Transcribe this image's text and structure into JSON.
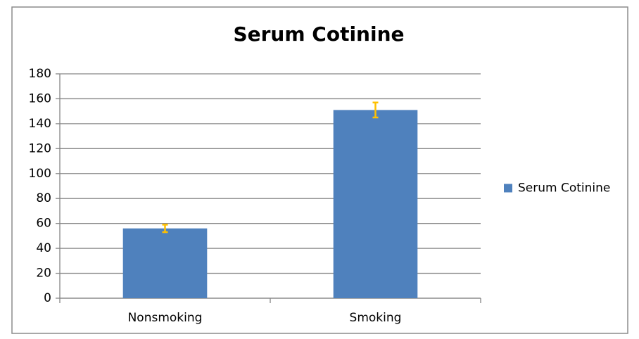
{
  "chart_data": {
    "type": "bar",
    "title": "Serum Cotinine",
    "categories": [
      "Nonsmoking",
      "Smoking"
    ],
    "series": [
      {
        "name": "Serum Cotinine",
        "color": "#4f81bd",
        "values": [
          56,
          151
        ],
        "errors": [
          3,
          6
        ],
        "error_color": "#ffc000"
      }
    ],
    "ylim": [
      0,
      180
    ],
    "yticks": [
      0,
      20,
      40,
      60,
      80,
      100,
      120,
      140,
      160,
      180
    ],
    "grid": true,
    "legend": "right"
  }
}
